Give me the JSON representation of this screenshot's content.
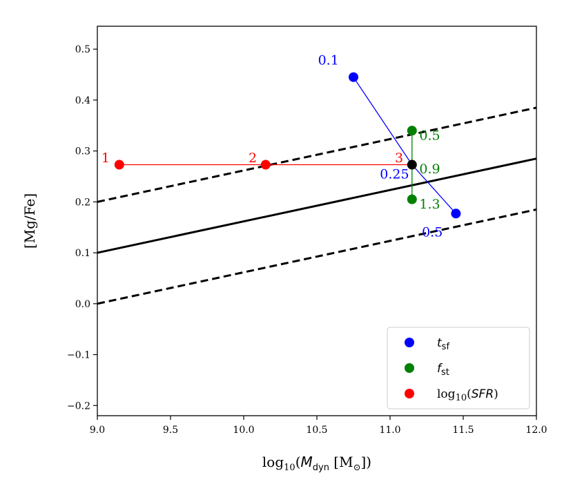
{
  "chart_data": {
    "type": "scatter",
    "xlabel": "log10(Mdyn [M⊙])",
    "xlabel_parts": {
      "base": "log",
      "base_sub": "10",
      "open": "(",
      "var": "M",
      "var_sub": "dyn",
      "unit": " [M",
      "unit_sub": "⊙",
      "close": "])"
    },
    "ylabel": "[Mg/Fe]",
    "xlim": [
      9.0,
      12.0
    ],
    "ylim": [
      -0.22,
      0.545
    ],
    "xticks": [
      9.0,
      9.5,
      10.0,
      10.5,
      11.0,
      11.5,
      12.0
    ],
    "xtick_labels": [
      "9.0",
      "9.5",
      "10.0",
      "10.5",
      "11.0",
      "11.5",
      "12.0"
    ],
    "yticks": [
      -0.2,
      -0.1,
      0.0,
      0.1,
      0.2,
      0.3,
      0.4,
      0.5
    ],
    "ytick_labels": [
      "−0.2",
      "−0.1",
      "0.0",
      "0.1",
      "0.2",
      "0.3",
      "0.4",
      "0.5"
    ],
    "reference_lines": [
      {
        "name": "relation",
        "style": "solid",
        "x": [
          9.0,
          12.0
        ],
        "y": [
          0.1,
          0.285
        ]
      },
      {
        "name": "upper-scatter",
        "style": "dashed",
        "x": [
          9.0,
          12.0
        ],
        "y": [
          0.2,
          0.385
        ]
      },
      {
        "name": "lower-scatter",
        "style": "dashed",
        "x": [
          9.0,
          12.0
        ],
        "y": [
          0.0,
          0.185
        ]
      }
    ],
    "fiducial_point": {
      "x": 11.15,
      "y": 0.273,
      "color": "#000000"
    },
    "series": [
      {
        "name": "t_sf",
        "color": "#0000ff",
        "points": [
          {
            "x": 10.75,
            "y": 0.445,
            "label": "0.1",
            "anchor": "end",
            "dx": -0.1,
            "dy": 0.025
          },
          {
            "x": 11.15,
            "y": 0.273,
            "label": "0.25",
            "anchor": "end",
            "dx": -0.02,
            "dy": -0.027,
            "marker": false
          },
          {
            "x": 11.45,
            "y": 0.177,
            "label": "0.5",
            "anchor": "end",
            "dx": -0.09,
            "dy": -0.045
          }
        ]
      },
      {
        "name": "f_st",
        "color": "#008000",
        "points": [
          {
            "x": 11.15,
            "y": 0.34,
            "label": "0.5",
            "anchor": "start",
            "dx": 0.05,
            "dy": -0.018
          },
          {
            "x": 11.15,
            "y": 0.273,
            "label": "0.9",
            "anchor": "start",
            "dx": 0.05,
            "dy": -0.017,
            "marker": false
          },
          {
            "x": 11.15,
            "y": 0.205,
            "label": "1.3",
            "anchor": "start",
            "dx": 0.05,
            "dy": -0.018
          }
        ]
      },
      {
        "name": "log10(SFR)",
        "color": "#ff0000",
        "points": [
          {
            "x": 9.15,
            "y": 0.273,
            "label": "1",
            "anchor": "end",
            "dx": -0.065,
            "dy": 0.005
          },
          {
            "x": 10.15,
            "y": 0.273,
            "label": "2",
            "anchor": "end",
            "dx": -0.06,
            "dy": 0.005
          },
          {
            "x": 11.15,
            "y": 0.273,
            "label": "3",
            "anchor": "end",
            "dx": -0.06,
            "dy": 0.005,
            "marker": false
          }
        ]
      }
    ],
    "legend": {
      "position": "lower-right",
      "entries": [
        {
          "series": "t_sf",
          "color": "#0000ff",
          "symbol": "t",
          "sub": "sf"
        },
        {
          "series": "f_st",
          "color": "#008000",
          "symbol": "f",
          "sub": "st"
        },
        {
          "series": "log10(SFR)",
          "color": "#ff0000",
          "prefix": "log",
          "prefix_sub": "10",
          "open": "(",
          "symbol": "SFR",
          "close": ")"
        }
      ]
    }
  }
}
